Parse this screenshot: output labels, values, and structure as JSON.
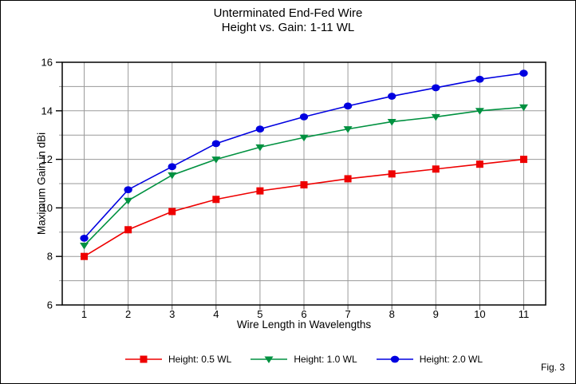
{
  "figure": {
    "fig_label": "Fig. 3"
  },
  "chart_data": {
    "type": "line",
    "title": "Unterminated End-Fed Wire",
    "subtitle": "Height vs. Gain: 1-11 WL",
    "xlabel": "Wire Length in Wavelengths",
    "ylabel": "Maximum Gain in dBi",
    "x": [
      1,
      2,
      3,
      4,
      5,
      6,
      7,
      8,
      9,
      10,
      11
    ],
    "xlim": [
      0.5,
      11.5
    ],
    "ylim": [
      6,
      16
    ],
    "y_major_ticks": [
      6,
      8,
      10,
      12,
      14,
      16
    ],
    "y_minor_step": 1,
    "grid": "on",
    "grid_color": "#9a9a9a",
    "legend_position": "bottom-center",
    "series": [
      {
        "name": "Height: 0.5 WL",
        "color": "#ee0000",
        "marker": "square",
        "values": [
          8.0,
          9.1,
          9.85,
          10.35,
          10.7,
          10.95,
          11.2,
          11.4,
          11.6,
          11.8,
          12.0
        ]
      },
      {
        "name": "Height: 1.0 WL",
        "color": "#009140",
        "marker": "triangle-down",
        "values": [
          8.45,
          10.3,
          11.35,
          12.0,
          12.5,
          12.9,
          13.25,
          13.55,
          13.75,
          14.0,
          14.15
        ]
      },
      {
        "name": "Height: 2.0 WL",
        "color": "#0000e0",
        "marker": "circle",
        "values": [
          8.75,
          10.75,
          11.7,
          12.65,
          13.25,
          13.75,
          14.2,
          14.6,
          14.95,
          15.3,
          15.55
        ]
      }
    ]
  }
}
